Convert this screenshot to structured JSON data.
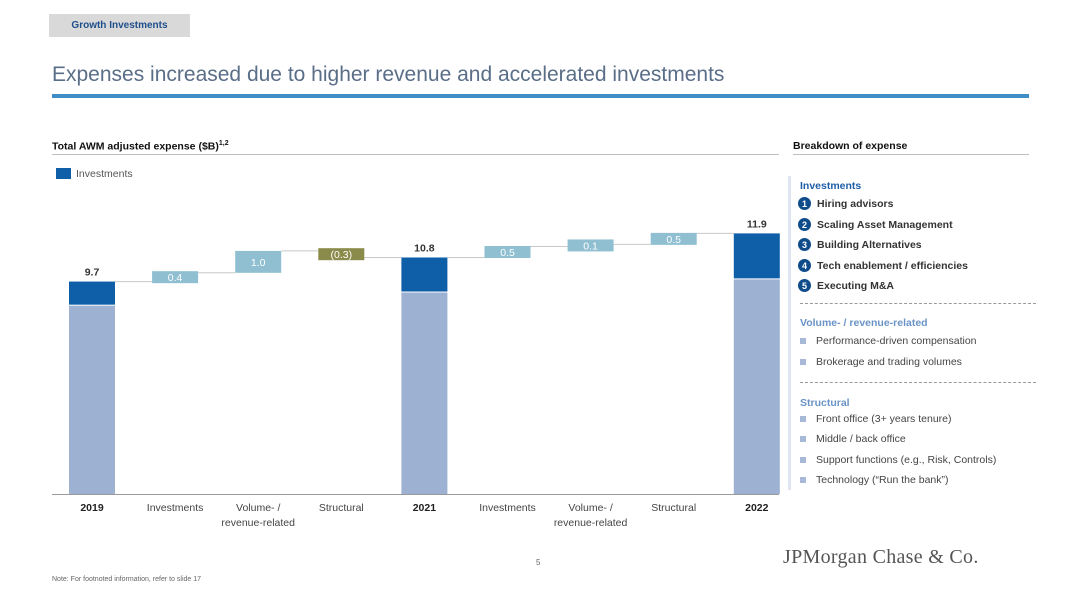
{
  "header": {
    "tab_label": "Growth Investments",
    "title": "Expenses increased due to higher revenue and accelerated investments"
  },
  "chart_section": {
    "title": "Total AWM adjusted expense ($B)",
    "title_sup": "1,2"
  },
  "chart_data": {
    "type": "bar",
    "subtype": "waterfall",
    "title": "Total AWM adjusted expense ($B)",
    "legend": [
      {
        "name": "Investments",
        "color": "#0f5ea8"
      }
    ],
    "legend_position": "top-left",
    "grid": false,
    "ylim": [
      0,
      13
    ],
    "categories": [
      "2019",
      "Investments",
      "Volume- / revenue-related",
      "Structural",
      "2021",
      "Investments",
      "Volume- / revenue-related",
      "Structural",
      "2022"
    ],
    "category_lines": [
      [
        "2019"
      ],
      [
        "Investments"
      ],
      [
        "Volume- /",
        "revenue-related"
      ],
      [
        "Structural"
      ],
      [
        "2021"
      ],
      [
        "Investments"
      ],
      [
        "Volume- /",
        "revenue-related"
      ],
      [
        "Structural"
      ],
      [
        "2022"
      ]
    ],
    "bold_categories": [
      0,
      4,
      8
    ],
    "totals": [
      {
        "index": 0,
        "label": "9.7",
        "value": 9.7,
        "investments": 1.1
      },
      {
        "index": 4,
        "label": "10.8",
        "value": 10.8,
        "investments": 1.6
      },
      {
        "index": 8,
        "label": "11.9",
        "value": 11.9,
        "investments": 2.1
      }
    ],
    "changes": [
      {
        "index": 1,
        "label": "0.4",
        "delta": 0.4,
        "start": 9.7,
        "color": "#8fbfd1"
      },
      {
        "index": 2,
        "label": "1.0",
        "delta": 1.0,
        "start": 10.1,
        "color": "#8fbfd1"
      },
      {
        "index": 3,
        "label": "(0.3)",
        "delta": -0.3,
        "start": 11.1,
        "color": "#8a8a4a"
      },
      {
        "index": 5,
        "label": "0.5",
        "delta": 0.5,
        "start": 10.8,
        "color": "#8fbfd1"
      },
      {
        "index": 6,
        "label": "0.1",
        "delta": 0.1,
        "start": 11.3,
        "color": "#8fbfd1"
      },
      {
        "index": 7,
        "label": "0.5",
        "delta": 0.5,
        "start": 11.4,
        "color": "#8fbfd1"
      }
    ],
    "colors": {
      "base": "#9db1d3",
      "investments": "#0f5ea8",
      "increase": "#8fbfd1",
      "decrease": "#8a8a4a"
    }
  },
  "breakdown": {
    "title": "Breakdown of expense",
    "investments": {
      "heading": "Investments",
      "items": [
        {
          "num": "1",
          "label": "Hiring advisors"
        },
        {
          "num": "2",
          "label": "Scaling Asset Management"
        },
        {
          "num": "3",
          "label": "Building Alternatives"
        },
        {
          "num": "4",
          "label": "Tech enablement / efficiencies"
        },
        {
          "num": "5",
          "label": "Executing M&A"
        }
      ]
    },
    "volume": {
      "heading": "Volume- / revenue-related",
      "items": [
        "Performance-driven compensation",
        "Brokerage and trading volumes"
      ]
    },
    "structural": {
      "heading": "Structural",
      "items": [
        "Front office (3+ years tenure)",
        "Middle / back office",
        "Support functions (e.g., Risk, Controls)",
        "Technology (“Run the bank”)"
      ]
    }
  },
  "footer": {
    "page_number": "5",
    "logo_text": "JPMorgan Chase & Co.",
    "note": "Note: For footnoted information, refer to slide 17"
  }
}
